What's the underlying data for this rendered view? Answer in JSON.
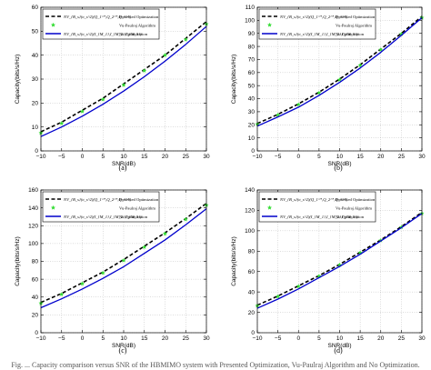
{
  "figure": {
    "caption": "Fig. ... Capacity comparison versus SNR of the HBMIMO system with Presented Optimization, Vu-Paulraj Algorithm and No Optimization."
  },
  "legend_labels": {
    "presented_expr": "NV_{B_s}(σ_s^2)(Q_1^*,Q_2^*,Q_3^*)",
    "presented_text": "Presented Optimization",
    "vu_text": "Vu-Paulraj Algorithm",
    "none_expr": "NV_{B_s}(σ_s^2)(I_{M_1},I_{M_2},I_{M_3})",
    "none_text": "No Optimization"
  },
  "series_styles": {
    "presented": {
      "color": "#000000",
      "dash": "4,2.5",
      "width": 1.6
    },
    "vu": {
      "color": "#33dd33",
      "marker": "star"
    },
    "none": {
      "color": "#0000cc",
      "width": 1.3
    }
  },
  "chart_data": [
    {
      "type": "line",
      "panel_label": "(a)",
      "xlabel": "SNR(dB)",
      "ylabel": "Capacity(bits/s/Hz)",
      "xlim": [
        -10,
        30
      ],
      "ylim": [
        0,
        60
      ],
      "xticks": [
        -10,
        -5,
        0,
        5,
        10,
        15,
        20,
        25,
        30
      ],
      "yticks": [
        0,
        10,
        20,
        30,
        40,
        50,
        60
      ],
      "grid": true,
      "legend_position": "top-left",
      "x": [
        -10,
        -5,
        0,
        5,
        10,
        15,
        20,
        25,
        30
      ],
      "series": [
        {
          "key": "presented",
          "values": [
            8,
            12,
            17,
            22,
            28,
            34,
            40,
            47,
            54
          ]
        },
        {
          "key": "vu",
          "values": [
            7.5,
            11.5,
            16.5,
            21.5,
            27.5,
            33.5,
            40,
            46.5,
            53
          ]
        },
        {
          "key": "none",
          "values": [
            6,
            10,
            14.5,
            19.5,
            25,
            31,
            37.5,
            44.5,
            52
          ]
        }
      ]
    },
    {
      "type": "line",
      "panel_label": "(b)",
      "xlabel": "SNR(dB)",
      "ylabel": "Capacity(bits/s/Hz)",
      "xlim": [
        -10,
        30
      ],
      "ylim": [
        0,
        110
      ],
      "xticks": [
        -10,
        -5,
        0,
        5,
        10,
        15,
        20,
        25,
        30
      ],
      "yticks": [
        0,
        10,
        20,
        30,
        40,
        50,
        60,
        70,
        80,
        90,
        100,
        110
      ],
      "grid": true,
      "legend_position": "top-left",
      "x": [
        -10,
        -5,
        0,
        5,
        10,
        15,
        20,
        25,
        30
      ],
      "series": [
        {
          "key": "presented",
          "values": [
            21,
            28,
            36,
            45,
            55,
            66,
            78,
            90,
            103
          ]
        },
        {
          "key": "vu",
          "values": [
            20.5,
            27.5,
            35.5,
            44.5,
            54.5,
            65.5,
            77.5,
            89.5,
            102
          ]
        },
        {
          "key": "none",
          "values": [
            19,
            26,
            33.5,
            42.5,
            52.5,
            63.5,
            75.5,
            88.5,
            102
          ]
        }
      ]
    },
    {
      "type": "line",
      "panel_label": "(c)",
      "xlabel": "SNR(dB)",
      "ylabel": "Capacity(bits/s/Hz)",
      "xlim": [
        -10,
        30
      ],
      "ylim": [
        0,
        160
      ],
      "xticks": [
        -10,
        -5,
        0,
        5,
        10,
        15,
        20,
        25,
        30
      ],
      "yticks": [
        0,
        20,
        40,
        60,
        80,
        100,
        120,
        140,
        160
      ],
      "grid": true,
      "legend_position": "top-left",
      "x": [
        -10,
        -5,
        0,
        5,
        10,
        15,
        20,
        25,
        30
      ],
      "series": [
        {
          "key": "presented",
          "values": [
            34,
            44,
            56,
            68,
            82,
            97,
            112,
            128,
            145
          ]
        },
        {
          "key": "vu",
          "values": [
            33,
            43,
            55,
            67,
            81,
            96,
            111,
            127,
            143
          ]
        },
        {
          "key": "none",
          "values": [
            28,
            38,
            49,
            61,
            74,
            89,
            104,
            121,
            139
          ]
        }
      ]
    },
    {
      "type": "line",
      "panel_label": "(d)",
      "xlabel": "SNR(dB)",
      "ylabel": "Capacity(bits/s/Hz)",
      "xlim": [
        -10,
        30
      ],
      "ylim": [
        0,
        140
      ],
      "xticks": [
        -10,
        -5,
        0,
        5,
        10,
        15,
        20,
        25,
        30
      ],
      "yticks": [
        0,
        20,
        40,
        60,
        80,
        100,
        120,
        140
      ],
      "grid": true,
      "legend_position": "top-left",
      "x": [
        -10,
        -5,
        0,
        5,
        10,
        15,
        20,
        25,
        30
      ],
      "series": [
        {
          "key": "presented",
          "values": [
            27,
            36,
            46,
            56,
            67,
            79,
            91,
            104,
            118
          ]
        },
        {
          "key": "vu",
          "values": [
            26.5,
            35.5,
            45.5,
            55.5,
            66.5,
            78.5,
            90.5,
            103.5,
            117
          ]
        },
        {
          "key": "none",
          "values": [
            24,
            33,
            43,
            54,
            65,
            77,
            90,
            103,
            117
          ]
        }
      ]
    }
  ]
}
